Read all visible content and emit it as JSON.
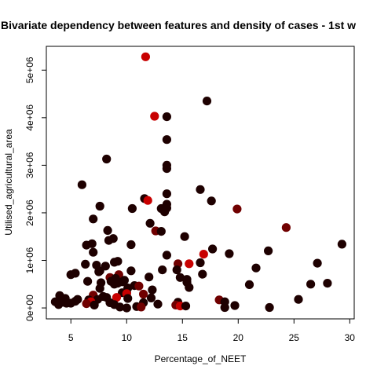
{
  "chart_data": {
    "type": "scatter",
    "title": "Bivariate dependency between features and density of cases -  1st w",
    "xlabel": "Percentage_of_NEET",
    "ylabel": "Utilised_agricultural_area",
    "xlim": [
      2.8,
      30.4
    ],
    "ylim": [
      -230000,
      5500000
    ],
    "x_ticks": [
      5,
      10,
      15,
      20,
      25,
      30
    ],
    "x_tick_labels": [
      "5",
      "10",
      "15",
      "20",
      "25",
      "30"
    ],
    "y_ticks": [
      0,
      1000000,
      2000000,
      3000000,
      4000000,
      5000000
    ],
    "y_tick_labels": [
      "0e+00",
      "1e+06",
      "2e+06",
      "3e+06",
      "4e+06",
      "5e+06"
    ],
    "grid": false,
    "legend": "none",
    "colors": {
      "dark": "#1e0000",
      "red": "#c80000",
      "mid": "#700000",
      "bright": "#e00000"
    },
    "points": [
      {
        "x": 11.7,
        "y": 5280000,
        "c": "red"
      },
      {
        "x": 17.2,
        "y": 4350000,
        "c": "dark"
      },
      {
        "x": 12.5,
        "y": 4030000,
        "c": "red"
      },
      {
        "x": 13.6,
        "y": 4020000,
        "c": "dark"
      },
      {
        "x": 13.6,
        "y": 3540000,
        "c": "dark"
      },
      {
        "x": 8.2,
        "y": 3130000,
        "c": "dark"
      },
      {
        "x": 13.6,
        "y": 3000000,
        "c": "dark"
      },
      {
        "x": 13.6,
        "y": 2930000,
        "c": "dark"
      },
      {
        "x": 6.0,
        "y": 2590000,
        "c": "dark"
      },
      {
        "x": 16.6,
        "y": 2490000,
        "c": "dark"
      },
      {
        "x": 13.6,
        "y": 2400000,
        "c": "dark"
      },
      {
        "x": 11.6,
        "y": 2300000,
        "c": "dark"
      },
      {
        "x": 11.9,
        "y": 2260000,
        "c": "red"
      },
      {
        "x": 17.6,
        "y": 2250000,
        "c": "dark"
      },
      {
        "x": 13.6,
        "y": 2180000,
        "c": "dark"
      },
      {
        "x": 7.6,
        "y": 2140000,
        "c": "dark"
      },
      {
        "x": 13.1,
        "y": 2090000,
        "c": "dark"
      },
      {
        "x": 13.6,
        "y": 2100000,
        "c": "dark"
      },
      {
        "x": 10.5,
        "y": 2090000,
        "c": "dark"
      },
      {
        "x": 19.9,
        "y": 2080000,
        "c": "mid"
      },
      {
        "x": 13.4,
        "y": 2020000,
        "c": "dark"
      },
      {
        "x": 7.0,
        "y": 1870000,
        "c": "dark"
      },
      {
        "x": 12.1,
        "y": 1780000,
        "c": "dark"
      },
      {
        "x": 24.3,
        "y": 1690000,
        "c": "mid"
      },
      {
        "x": 12.6,
        "y": 1620000,
        "c": "mid"
      },
      {
        "x": 13.1,
        "y": 1610000,
        "c": "dark"
      },
      {
        "x": 8.3,
        "y": 1630000,
        "c": "dark"
      },
      {
        "x": 15.2,
        "y": 1500000,
        "c": "dark"
      },
      {
        "x": 8.8,
        "y": 1460000,
        "c": "dark"
      },
      {
        "x": 8.4,
        "y": 1420000,
        "c": "dark"
      },
      {
        "x": 6.9,
        "y": 1350000,
        "c": "dark"
      },
      {
        "x": 6.4,
        "y": 1320000,
        "c": "dark"
      },
      {
        "x": 29.3,
        "y": 1340000,
        "c": "dark"
      },
      {
        "x": 10.4,
        "y": 1330000,
        "c": "dark"
      },
      {
        "x": 17.7,
        "y": 1240000,
        "c": "dark"
      },
      {
        "x": 22.7,
        "y": 1200000,
        "c": "dark"
      },
      {
        "x": 7.0,
        "y": 1170000,
        "c": "dark"
      },
      {
        "x": 16.9,
        "y": 1130000,
        "c": "red"
      },
      {
        "x": 19.2,
        "y": 1140000,
        "c": "dark"
      },
      {
        "x": 13.6,
        "y": 1110000,
        "c": "dark"
      },
      {
        "x": 9.2,
        "y": 980000,
        "c": "dark"
      },
      {
        "x": 8.9,
        "y": 960000,
        "c": "dark"
      },
      {
        "x": 15.6,
        "y": 930000,
        "c": "red"
      },
      {
        "x": 14.6,
        "y": 930000,
        "c": "mid"
      },
      {
        "x": 27.1,
        "y": 940000,
        "c": "dark"
      },
      {
        "x": 6.3,
        "y": 920000,
        "c": "dark"
      },
      {
        "x": 16.6,
        "y": 950000,
        "c": "dark"
      },
      {
        "x": 7.3,
        "y": 900000,
        "c": "dark"
      },
      {
        "x": 8.1,
        "y": 880000,
        "c": "dark"
      },
      {
        "x": 21.6,
        "y": 840000,
        "c": "dark"
      },
      {
        "x": 13.2,
        "y": 800000,
        "c": "dark"
      },
      {
        "x": 14.5,
        "y": 800000,
        "c": "dark"
      },
      {
        "x": 10.4,
        "y": 780000,
        "c": "dark"
      },
      {
        "x": 7.6,
        "y": 780000,
        "c": "dark"
      },
      {
        "x": 7.5,
        "y": 760000,
        "c": "dark"
      },
      {
        "x": 5.4,
        "y": 730000,
        "c": "dark"
      },
      {
        "x": 16.8,
        "y": 710000,
        "c": "dark"
      },
      {
        "x": 5.0,
        "y": 700000,
        "c": "dark"
      },
      {
        "x": 9.3,
        "y": 700000,
        "c": "mid"
      },
      {
        "x": 12.0,
        "y": 650000,
        "c": "dark"
      },
      {
        "x": 8.5,
        "y": 640000,
        "c": "mid"
      },
      {
        "x": 9.0,
        "y": 620000,
        "c": "dark"
      },
      {
        "x": 14.8,
        "y": 640000,
        "c": "dark"
      },
      {
        "x": 15.4,
        "y": 600000,
        "c": "dark"
      },
      {
        "x": 9.8,
        "y": 580000,
        "c": "dark"
      },
      {
        "x": 6.5,
        "y": 560000,
        "c": "dark"
      },
      {
        "x": 8.6,
        "y": 560000,
        "c": "dark"
      },
      {
        "x": 9.6,
        "y": 550000,
        "c": "dark"
      },
      {
        "x": 7.7,
        "y": 530000,
        "c": "dark"
      },
      {
        "x": 15.4,
        "y": 540000,
        "c": "dark"
      },
      {
        "x": 9.2,
        "y": 520000,
        "c": "dark"
      },
      {
        "x": 8.9,
        "y": 500000,
        "c": "dark"
      },
      {
        "x": 26.5,
        "y": 500000,
        "c": "dark"
      },
      {
        "x": 28.0,
        "y": 520000,
        "c": "dark"
      },
      {
        "x": 21.0,
        "y": 490000,
        "c": "dark"
      },
      {
        "x": 10.7,
        "y": 470000,
        "c": "dark"
      },
      {
        "x": 11.1,
        "y": 460000,
        "c": "mid"
      },
      {
        "x": 15.6,
        "y": 430000,
        "c": "dark"
      },
      {
        "x": 10.1,
        "y": 420000,
        "c": "dark"
      },
      {
        "x": 7.6,
        "y": 410000,
        "c": "dark"
      },
      {
        "x": 12.3,
        "y": 380000,
        "c": "dark"
      },
      {
        "x": 10.0,
        "y": 330000,
        "c": "dark"
      },
      {
        "x": 9.6,
        "y": 320000,
        "c": "dark"
      },
      {
        "x": 10.0,
        "y": 300000,
        "c": "red"
      },
      {
        "x": 11.5,
        "y": 290000,
        "c": "mid"
      },
      {
        "x": 7.0,
        "y": 270000,
        "c": "mid"
      },
      {
        "x": 4.0,
        "y": 260000,
        "c": "dark"
      },
      {
        "x": 7.9,
        "y": 240000,
        "c": "dark"
      },
      {
        "x": 9.1,
        "y": 220000,
        "c": "red"
      },
      {
        "x": 8.2,
        "y": 220000,
        "c": "dark"
      },
      {
        "x": 12.2,
        "y": 210000,
        "c": "dark"
      },
      {
        "x": 10.1,
        "y": 200000,
        "c": "dark"
      },
      {
        "x": 4.5,
        "y": 200000,
        "c": "dark"
      },
      {
        "x": 4.2,
        "y": 200000,
        "c": "dark"
      },
      {
        "x": 5.6,
        "y": 180000,
        "c": "dark"
      },
      {
        "x": 7.4,
        "y": 180000,
        "c": "dark"
      },
      {
        "x": 25.4,
        "y": 180000,
        "c": "dark"
      },
      {
        "x": 6.6,
        "y": 170000,
        "c": "dark"
      },
      {
        "x": 18.3,
        "y": 170000,
        "c": "mid"
      },
      {
        "x": 3.6,
        "y": 130000,
        "c": "dark"
      },
      {
        "x": 5.4,
        "y": 140000,
        "c": "dark"
      },
      {
        "x": 4.3,
        "y": 120000,
        "c": "dark"
      },
      {
        "x": 11.5,
        "y": 110000,
        "c": "dark"
      },
      {
        "x": 8.5,
        "y": 110000,
        "c": "dark"
      },
      {
        "x": 14.6,
        "y": 120000,
        "c": "dark"
      },
      {
        "x": 18.8,
        "y": 130000,
        "c": "dark"
      },
      {
        "x": 6.8,
        "y": 130000,
        "c": "red"
      },
      {
        "x": 5.0,
        "y": 100000,
        "c": "dark"
      },
      {
        "x": 4.6,
        "y": 100000,
        "c": "dark"
      },
      {
        "x": 6.4,
        "y": 90000,
        "c": "mid"
      },
      {
        "x": 12.8,
        "y": 80000,
        "c": "dark"
      },
      {
        "x": 3.9,
        "y": 70000,
        "c": "dark"
      },
      {
        "x": 8.9,
        "y": 70000,
        "c": "dark"
      },
      {
        "x": 7.1,
        "y": 60000,
        "c": "dark"
      },
      {
        "x": 14.4,
        "y": 60000,
        "c": "mid"
      },
      {
        "x": 19.7,
        "y": 50000,
        "c": "dark"
      },
      {
        "x": 14.8,
        "y": 40000,
        "c": "red"
      },
      {
        "x": 15.3,
        "y": 40000,
        "c": "dark"
      },
      {
        "x": 10.9,
        "y": 30000,
        "c": "dark"
      },
      {
        "x": 11.3,
        "y": 20000,
        "c": "mid"
      },
      {
        "x": 9.4,
        "y": 20000,
        "c": "dark"
      },
      {
        "x": 18.8,
        "y": 10000,
        "c": "dark"
      },
      {
        "x": 22.8,
        "y": 10000,
        "c": "dark"
      },
      {
        "x": 10.0,
        "y": 0,
        "c": "dark"
      }
    ]
  }
}
